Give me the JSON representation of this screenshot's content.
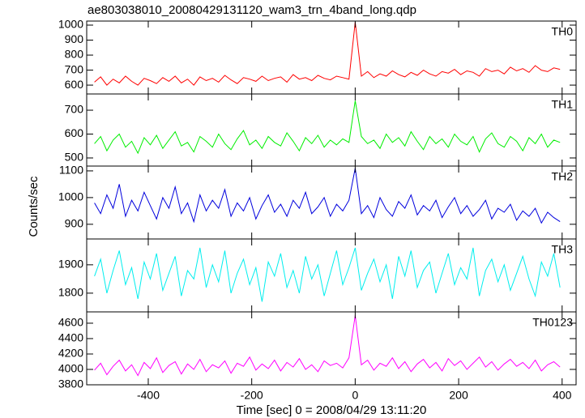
{
  "figure": {
    "title": "ae803038010_20080429131120_wam3_trn_4band_long.qdp",
    "xlabel": "Time [sec] 0 = 2008/04/29 13:11:20",
    "ylabel": "Counts/sec"
  },
  "chart_data": [
    {
      "type": "line",
      "xlim": [
        -519,
        427
      ],
      "ylim": [
        541,
        1027
      ],
      "yticks": [
        600,
        700,
        800,
        900,
        1000
      ],
      "x": [
        -504,
        -492,
        -480,
        -468,
        -456,
        -444,
        -432,
        -420,
        -408,
        -396,
        -384,
        -372,
        -360,
        -348,
        -336,
        -324,
        -312,
        -300,
        -288,
        -276,
        -264,
        -252,
        -240,
        -228,
        -216,
        -204,
        -192,
        -180,
        -168,
        -156,
        -144,
        -132,
        -120,
        -108,
        -96,
        -84,
        -72,
        -60,
        -48,
        -36,
        -24,
        -12,
        0,
        12,
        24,
        36,
        48,
        60,
        72,
        84,
        96,
        108,
        120,
        132,
        144,
        156,
        168,
        180,
        192,
        204,
        216,
        228,
        240,
        252,
        264,
        276,
        288,
        300,
        312,
        324,
        336,
        348,
        360,
        372,
        384,
        396
      ],
      "series": [
        {
          "name": "TH0",
          "color": "#ff0000",
          "values": [
            620,
            655,
            600,
            640,
            615,
            660,
            625,
            600,
            645,
            630,
            610,
            650,
            625,
            660,
            615,
            640,
            600,
            655,
            630,
            645,
            620,
            665,
            635,
            610,
            650,
            640,
            625,
            660,
            630,
            645,
            655,
            620,
            670,
            640,
            650,
            630,
            665,
            645,
            635,
            660,
            650,
            640,
            1020,
            660,
            690,
            650,
            675,
            660,
            695,
            670,
            655,
            685,
            665,
            700,
            675,
            660,
            690,
            680,
            705,
            670,
            695,
            685,
            660,
            710,
            690,
            700,
            675,
            720,
            695,
            710,
            685,
            730,
            700,
            690,
            715,
            705
          ]
        }
      ]
    },
    {
      "type": "line",
      "xlim": [
        -519,
        427
      ],
      "ylim": [
        466,
        768
      ],
      "yticks": [
        500,
        600,
        700
      ],
      "x": [
        -504,
        -492,
        -480,
        -468,
        -456,
        -444,
        -432,
        -420,
        -408,
        -396,
        -384,
        -372,
        -360,
        -348,
        -336,
        -324,
        -312,
        -300,
        -288,
        -276,
        -264,
        -252,
        -240,
        -228,
        -216,
        -204,
        -192,
        -180,
        -168,
        -156,
        -144,
        -132,
        -120,
        -108,
        -96,
        -84,
        -72,
        -60,
        -48,
        -36,
        -24,
        -12,
        0,
        12,
        24,
        36,
        48,
        60,
        72,
        84,
        96,
        108,
        120,
        132,
        144,
        156,
        168,
        180,
        192,
        204,
        216,
        228,
        240,
        252,
        264,
        276,
        288,
        300,
        312,
        324,
        336,
        348,
        360,
        372,
        384,
        396
      ],
      "series": [
        {
          "name": "TH1",
          "color": "#00ee00",
          "values": [
            560,
            590,
            530,
            575,
            600,
            545,
            570,
            520,
            585,
            555,
            595,
            540,
            575,
            610,
            550,
            565,
            525,
            590,
            570,
            545,
            600,
            560,
            535,
            580,
            615,
            555,
            575,
            540,
            590,
            565,
            550,
            605,
            570,
            530,
            585,
            560,
            595,
            545,
            575,
            555,
            580,
            565,
            740,
            590,
            560,
            575,
            540,
            600,
            565,
            585,
            550,
            610,
            570,
            535,
            590,
            560,
            580,
            545,
            600,
            570,
            555,
            590,
            525,
            580,
            605,
            560,
            545,
            590,
            570,
            530,
            585,
            560,
            600,
            545,
            575,
            565
          ]
        }
      ]
    },
    {
      "type": "line",
      "xlim": [
        -519,
        427
      ],
      "ylim": [
        845,
        1118
      ],
      "yticks": [
        900,
        1000,
        1100
      ],
      "x": [
        -504,
        -492,
        -480,
        -468,
        -456,
        -444,
        -432,
        -420,
        -408,
        -396,
        -384,
        -372,
        -360,
        -348,
        -336,
        -324,
        -312,
        -300,
        -288,
        -276,
        -264,
        -252,
        -240,
        -228,
        -216,
        -204,
        -192,
        -180,
        -168,
        -156,
        -144,
        -132,
        -120,
        -108,
        -96,
        -84,
        -72,
        -60,
        -48,
        -36,
        -24,
        -12,
        0,
        12,
        24,
        36,
        48,
        60,
        72,
        84,
        96,
        108,
        120,
        132,
        144,
        156,
        168,
        180,
        192,
        204,
        216,
        228,
        240,
        252,
        264,
        276,
        288,
        300,
        312,
        324,
        336,
        348,
        360,
        372,
        384,
        396
      ],
      "series": [
        {
          "name": "TH2",
          "color": "#0000dd",
          "values": [
            980,
            940,
            1010,
            960,
            1050,
            930,
            990,
            950,
            1020,
            970,
            920,
            1000,
            960,
            1040,
            940,
            980,
            910,
            1010,
            950,
            990,
            960,
            1030,
            930,
            980,
            950,
            1000,
            920,
            970,
            1010,
            945,
            975,
            930,
            990,
            960,
            1020,
            940,
            965,
            1000,
            930,
            975,
            950,
            990,
            1110,
            940,
            970,
            925,
            1000,
            955,
            930,
            985,
            960,
            1010,
            935,
            970,
            950,
            990,
            925,
            965,
            1000,
            940,
            970,
            930,
            955,
            990,
            920,
            960,
            945,
            975,
            915,
            950,
            930,
            960,
            905,
            945,
            925,
            910
          ]
        }
      ]
    },
    {
      "type": "line",
      "xlim": [
        -519,
        427
      ],
      "ylim": [
        1734,
        1991
      ],
      "yticks": [
        1800,
        1900
      ],
      "x": [
        -504,
        -492,
        -480,
        -468,
        -456,
        -444,
        -432,
        -420,
        -408,
        -396,
        -384,
        -372,
        -360,
        -348,
        -336,
        -324,
        -312,
        -300,
        -288,
        -276,
        -264,
        -252,
        -240,
        -228,
        -216,
        -204,
        -192,
        -180,
        -168,
        -156,
        -144,
        -132,
        -120,
        -108,
        -96,
        -84,
        -72,
        -60,
        -48,
        -36,
        -24,
        -12,
        0,
        12,
        24,
        36,
        48,
        60,
        72,
        84,
        96,
        108,
        120,
        132,
        144,
        156,
        168,
        180,
        192,
        204,
        216,
        228,
        240,
        252,
        264,
        276,
        288,
        300,
        312,
        324,
        336,
        348,
        360,
        372,
        384,
        396
      ],
      "series": [
        {
          "name": "TH3",
          "color": "#00eeee",
          "values": [
            1860,
            1920,
            1800,
            1880,
            1950,
            1830,
            1890,
            1780,
            1910,
            1850,
            1940,
            1810,
            1870,
            1930,
            1790,
            1880,
            1850,
            1960,
            1820,
            1900,
            1840,
            1950,
            1800,
            1870,
            1920,
            1830,
            1890,
            1770,
            1910,
            1860,
            1940,
            1820,
            1880,
            1800,
            1930,
            1850,
            1900,
            1790,
            1870,
            1950,
            1830,
            1890,
            1960,
            1810,
            1870,
            1920,
            1840,
            1900,
            1780,
            1930,
            1860,
            1950,
            1820,
            1880,
            1910,
            1800,
            1870,
            1940,
            1830,
            1890,
            1850,
            1960,
            1790,
            1880,
            1920,
            1840,
            1900,
            1810,
            1870,
            1930,
            1850,
            1790,
            1910,
            1860,
            1940,
            1820
          ]
        }
      ]
    },
    {
      "type": "line",
      "xlim": [
        -519,
        427
      ],
      "ylim": [
        3800,
        4747
      ],
      "yticks": [
        3800,
        4000,
        4200,
        4400,
        4600
      ],
      "xticks": [
        -400,
        -200,
        0,
        200,
        400
      ],
      "x": [
        -504,
        -492,
        -480,
        -468,
        -456,
        -444,
        -432,
        -420,
        -408,
        -396,
        -384,
        -372,
        -360,
        -348,
        -336,
        -324,
        -312,
        -300,
        -288,
        -276,
        -264,
        -252,
        -240,
        -228,
        -216,
        -204,
        -192,
        -180,
        -168,
        -156,
        -144,
        -132,
        -120,
        -108,
        -96,
        -84,
        -72,
        -60,
        -48,
        -36,
        -24,
        -12,
        0,
        12,
        24,
        36,
        48,
        60,
        72,
        84,
        96,
        108,
        120,
        132,
        144,
        156,
        168,
        180,
        192,
        204,
        216,
        228,
        240,
        252,
        264,
        276,
        288,
        300,
        312,
        324,
        336,
        348,
        360,
        372,
        384,
        396
      ],
      "series": [
        {
          "name": "TH0123",
          "color": "#ff00ff",
          "values": [
            3990,
            4080,
            3930,
            4040,
            4120,
            3980,
            4060,
            3920,
            4090,
            4010,
            4150,
            3960,
            4050,
            4100,
            3940,
            4070,
            4000,
            4130,
            3970,
            4060,
            4020,
            4110,
            3950,
            4080,
            4040,
            4160,
            3990,
            4070,
            4010,
            4120,
            3980,
            4090,
            4030,
            4140,
            4000,
            4060,
            3970,
            4110,
            4050,
            4080,
            4020,
            4150,
            4700,
            4060,
            4120,
            3990,
            4080,
            4040,
            4150,
            4010,
            4100,
            3970,
            4070,
            4130,
            4020,
            4090,
            3980,
            4140,
            4050,
            4110,
            4000,
            4080,
            4160,
            4030,
            4100,
            3990,
            4070,
            4130,
            4040,
            4090,
            4010,
            4120,
            3980,
            4060,
            4100,
            4030
          ]
        }
      ]
    }
  ]
}
